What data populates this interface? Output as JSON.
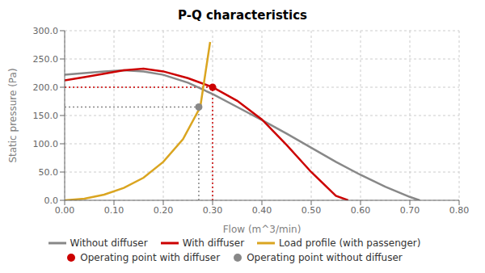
{
  "chart_data": {
    "type": "line",
    "title": "P-Q characteristics",
    "xlabel": "Flow (m^3/min)",
    "ylabel": "Static pressure (Pa)",
    "xlim": [
      0.0,
      0.8
    ],
    "ylim": [
      0.0,
      300.0
    ],
    "xticks": [
      {
        "value": 0.0,
        "label": "0.00"
      },
      {
        "value": 0.1,
        "label": "0.10"
      },
      {
        "value": 0.2,
        "label": "0.20"
      },
      {
        "value": 0.3,
        "label": "0.30"
      },
      {
        "value": 0.4,
        "label": "0.40"
      },
      {
        "value": 0.5,
        "label": "0.50"
      },
      {
        "value": 0.6,
        "label": "0.60"
      },
      {
        "value": 0.7,
        "label": "0.70"
      },
      {
        "value": 0.8,
        "label": "0.80"
      }
    ],
    "yticks": [
      {
        "value": 0.0,
        "label": "0.0"
      },
      {
        "value": 50.0,
        "label": "50.0"
      },
      {
        "value": 100.0,
        "label": "100.0"
      },
      {
        "value": 150.0,
        "label": "150.0"
      },
      {
        "value": 200.0,
        "label": "200.0"
      },
      {
        "value": 250.0,
        "label": "250.0"
      },
      {
        "value": 300.0,
        "label": "300.0"
      }
    ],
    "grid": true,
    "legend": "bottom",
    "series": [
      {
        "name": "Without diffuser",
        "type": "line",
        "line_style": "solid",
        "color": "#888888",
        "x": [
          0.0,
          0.04,
          0.08,
          0.12,
          0.16,
          0.2,
          0.25,
          0.3,
          0.35,
          0.4,
          0.45,
          0.5,
          0.55,
          0.6,
          0.65,
          0.7,
          0.72
        ],
        "values": [
          222,
          225,
          228,
          230,
          228,
          222,
          208,
          188,
          165,
          142,
          118,
          93,
          68,
          45,
          24,
          6,
          0
        ]
      },
      {
        "name": "With diffuser",
        "type": "line",
        "line_style": "solid",
        "color": "#cc0000",
        "x": [
          0.0,
          0.04,
          0.08,
          0.12,
          0.16,
          0.2,
          0.25,
          0.3,
          0.35,
          0.4,
          0.45,
          0.5,
          0.55,
          0.575
        ],
        "values": [
          212,
          218,
          224,
          230,
          233,
          228,
          216,
          200,
          176,
          143,
          98,
          50,
          8,
          0
        ]
      },
      {
        "name": "Load profile (with passenger)",
        "type": "line",
        "line_style": "solid",
        "color": "#DAA520",
        "x": [
          0.0,
          0.04,
          0.08,
          0.12,
          0.16,
          0.2,
          0.24,
          0.275,
          0.295
        ],
        "values": [
          0,
          3,
          10,
          22,
          40,
          68,
          108,
          165,
          280
        ]
      },
      {
        "name": "Operating point with diffuser",
        "type": "scatter",
        "marker": "circle",
        "line_style": "dotted",
        "color": "#cc0000",
        "x": [
          0.3
        ],
        "values": [
          200
        ]
      },
      {
        "name": "Operating point without diffuser",
        "type": "scatter",
        "marker": "circle",
        "line_style": "dotted",
        "color": "#888888",
        "x": [
          0.272
        ],
        "values": [
          165
        ]
      }
    ]
  }
}
